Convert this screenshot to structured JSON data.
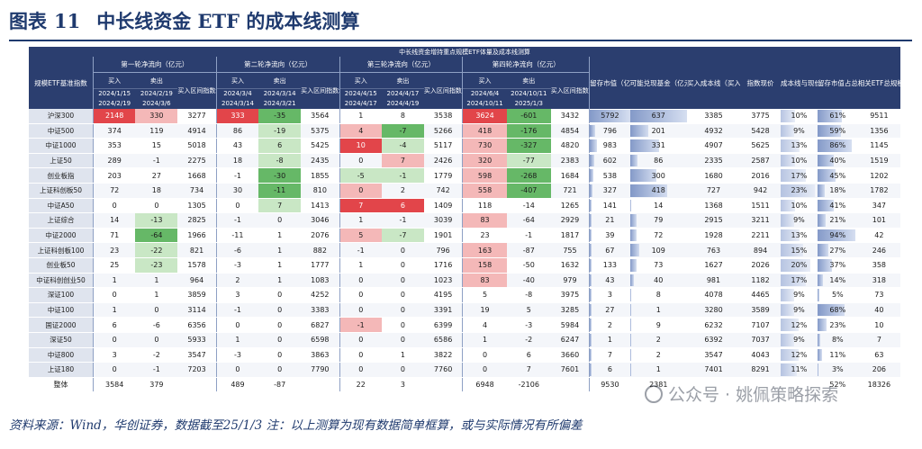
{
  "figure": {
    "label": "图表",
    "number": "11",
    "title": "中长线资金 ETF 的成本线测算"
  },
  "table": {
    "caption": "中长线资金增持重点规模ETF体量及成本线测算",
    "corner": "规模ETF基准指数",
    "rounds": [
      {
        "title": "第一轮净流向（亿元）",
        "buy": "买入",
        "sell": "卖出",
        "range_head": "买入区间指数均价",
        "buy_period": [
          "2024/1/15",
          "2024/2/19"
        ],
        "sell_period": [
          "2024/2/19",
          "2024/3/6"
        ]
      },
      {
        "title": "第二轮净流向（亿元）",
        "buy": "买入",
        "sell": "卖出",
        "range_head": "买入区间指数均价",
        "buy_period": [
          "2024/3/4",
          "2024/3/14"
        ],
        "sell_period": [
          "2024/3/14",
          "2024/3/21"
        ]
      },
      {
        "title": "第三轮净流向（亿元）",
        "buy": "买入",
        "sell": "卖出",
        "range_head": "买入区间指数均价",
        "buy_period": [
          "2024/4/15",
          "2024/4/17"
        ],
        "sell_period": [
          "2024/4/17",
          "2024/4/19"
        ]
      },
      {
        "title": "第四轮净流向（亿元）",
        "buy": "买入",
        "sell": "卖出",
        "range_head": "买入区间指数均价",
        "buy_period": [
          "2024/6/4",
          "2024/10/11"
        ],
        "sell_period": [
          "2024/10/11",
          "2025/1/3"
        ]
      }
    ],
    "extra_heads": [
      "留存市值（亿元）",
      "可能兑现基金（亿元）",
      "买入成本线（买入金额加权）",
      "指数现价",
      "成本线与现价安全垫",
      "留存市值占总规模比例",
      "相关ETF总规模（亿元）"
    ],
    "rows": [
      {
        "name": "沪深300",
        "v": [
          "2148",
          "330",
          "3277",
          "333",
          "-35",
          "3564",
          "1",
          "8",
          "3538",
          "3624",
          "-601",
          "3432",
          "5792",
          "637",
          "3385",
          "3775",
          "10%",
          "61%",
          "9511"
        ]
      },
      {
        "name": "中证500",
        "v": [
          "374",
          "119",
          "4914",
          "86",
          "-19",
          "5375",
          "4",
          "-7",
          "5266",
          "418",
          "-176",
          "4854",
          "796",
          "201",
          "4932",
          "5428",
          "9%",
          "59%",
          "1356"
        ]
      },
      {
        "name": "中证1000",
        "v": [
          "353",
          "15",
          "5018",
          "43",
          "6",
          "5425",
          "10",
          "-4",
          "5117",
          "730",
          "-327",
          "4820",
          "983",
          "331",
          "4907",
          "5625",
          "13%",
          "86%",
          "1145"
        ]
      },
      {
        "name": "上证50",
        "v": [
          "289",
          "-1",
          "2275",
          "18",
          "-8",
          "2435",
          "0",
          "7",
          "2426",
          "320",
          "-77",
          "2383",
          "602",
          "86",
          "2335",
          "2587",
          "10%",
          "40%",
          "1519"
        ]
      },
      {
        "name": "创业板指",
        "v": [
          "203",
          "27",
          "1668",
          "-1",
          "-30",
          "1855",
          "-5",
          "-1",
          "1779",
          "598",
          "-268",
          "1684",
          "538",
          "300",
          "1680",
          "2016",
          "17%",
          "45%",
          "1202"
        ]
      },
      {
        "name": "上证科创板50",
        "v": [
          "72",
          "18",
          "734",
          "30",
          "-11",
          "810",
          "0",
          "2",
          "742",
          "558",
          "-407",
          "721",
          "327",
          "418",
          "727",
          "942",
          "23%",
          "18%",
          "1782"
        ]
      },
      {
        "name": "中证A50",
        "v": [
          "0",
          "0",
          "1305",
          "0",
          "7",
          "1413",
          "7",
          "6",
          "1409",
          "118",
          "-14",
          "1265",
          "141",
          "14",
          "1368",
          "1511",
          "10%",
          "41%",
          "347"
        ]
      },
      {
        "name": "上证综合",
        "v": [
          "14",
          "-13",
          "2825",
          "-1",
          "0",
          "3046",
          "1",
          "-1",
          "3039",
          "83",
          "-64",
          "2929",
          "21",
          "79",
          "2915",
          "3211",
          "9%",
          "21%",
          "101"
        ]
      },
      {
        "name": "中证2000",
        "v": [
          "71",
          "-64",
          "1966",
          "-11",
          "1",
          "2076",
          "5",
          "-7",
          "1901",
          "23",
          "-1",
          "1817",
          "39",
          "72",
          "1928",
          "2211",
          "13%",
          "94%",
          "42"
        ]
      },
      {
        "name": "上证科创板100",
        "v": [
          "23",
          "-22",
          "821",
          "-6",
          "1",
          "882",
          "-1",
          "0",
          "796",
          "163",
          "-87",
          "755",
          "67",
          "109",
          "763",
          "894",
          "15%",
          "27%",
          "246"
        ]
      },
      {
        "name": "创业板50",
        "v": [
          "25",
          "-23",
          "1578",
          "-3",
          "1",
          "1777",
          "1",
          "0",
          "1716",
          "158",
          "-50",
          "1632",
          "133",
          "73",
          "1627",
          "2026",
          "20%",
          "37%",
          "358"
        ]
      },
      {
        "name": "中证科创创业50",
        "v": [
          "1",
          "1",
          "964",
          "2",
          "1",
          "1083",
          "0",
          "0",
          "1023",
          "83",
          "-40",
          "979",
          "43",
          "40",
          "981",
          "1182",
          "17%",
          "14%",
          "318"
        ]
      },
      {
        "name": "深证100",
        "v": [
          "0",
          "1",
          "3859",
          "3",
          "0",
          "4252",
          "0",
          "0",
          "4195",
          "5",
          "-8",
          "3975",
          "3",
          "8",
          "4078",
          "4465",
          "9%",
          "5%",
          "73"
        ]
      },
      {
        "name": "中证100",
        "v": [
          "1",
          "0",
          "3114",
          "-1",
          "0",
          "3383",
          "0",
          "0",
          "3391",
          "19",
          "5",
          "3285",
          "27",
          "1",
          "3280",
          "3589",
          "9%",
          "68%",
          "40"
        ]
      },
      {
        "name": "国证2000",
        "v": [
          "6",
          "-6",
          "6356",
          "0",
          "0",
          "6827",
          "-1",
          "0",
          "6399",
          "4",
          "-3",
          "5984",
          "2",
          "9",
          "6232",
          "7107",
          "12%",
          "23%",
          "10"
        ]
      },
      {
        "name": "深证50",
        "v": [
          "0",
          "0",
          "5933",
          "1",
          "0",
          "6598",
          "0",
          "0",
          "6586",
          "1",
          "-2",
          "6247",
          "1",
          "2",
          "6392",
          "7037",
          "9%",
          "8%",
          "7"
        ]
      },
      {
        "name": "中证800",
        "v": [
          "3",
          "-2",
          "3547",
          "-3",
          "0",
          "3863",
          "0",
          "1",
          "3822",
          "0",
          "6",
          "3660",
          "7",
          "2",
          "3547",
          "4043",
          "12%",
          "11%",
          "63"
        ]
      },
      {
        "name": "上证180",
        "v": [
          "0",
          "-1",
          "7203",
          "0",
          "0",
          "7790",
          "0",
          "0",
          "7760",
          "0",
          "7",
          "7601",
          "6",
          "1",
          "7401",
          "8291",
          "11%",
          "3%",
          "206"
        ]
      }
    ],
    "total": {
      "name": "整体",
      "v": [
        "3584",
        "379",
        "",
        "489",
        "-87",
        "",
        "22",
        "3",
        "",
        "6948",
        "-2106",
        "",
        "9530",
        "2381",
        "",
        "",
        "",
        "52%",
        "18326"
      ]
    }
  },
  "highlight": {
    "strong_red": "#e2454a",
    "light_red": "#f4b8b8",
    "strong_green": "#66b867",
    "light_green": "#c9e7c5",
    "bar_blue": "#5b78b6"
  },
  "cells_strong_red": [
    "0-0",
    "0-3",
    "0-9",
    "2-6",
    "6-6",
    "6-7"
  ],
  "cells_light_red": [
    "0-1",
    "1-6",
    "2-9",
    "3-7",
    "4-9",
    "5-9",
    "8-6",
    "5-6",
    "11-9",
    "10-9",
    "1-9",
    "7-9",
    "9-9",
    "3-9",
    "14-6"
  ],
  "cells_strong_green": [
    "0-4",
    "4-4",
    "0-10",
    "1-10",
    "2-10",
    "4-10",
    "5-10",
    "8-1",
    "1-7",
    "5-4"
  ],
  "cells_light_green": [
    "1-4",
    "3-4",
    "4-6",
    "4-7",
    "6-4",
    "2-4",
    "8-7",
    "9-1",
    "10-1",
    "7-1",
    "3-10",
    "2-7"
  ],
  "bars": {
    "retained": [
      5792,
      796,
      983,
      602,
      538,
      327,
      141,
      21,
      39,
      67,
      133,
      43,
      3,
      27,
      2,
      1,
      7,
      6
    ],
    "possible": [
      637,
      201,
      331,
      86,
      300,
      418,
      14,
      79,
      72,
      109,
      73,
      40,
      8,
      1,
      9,
      2,
      2,
      1
    ],
    "cushion": [
      0.1,
      0.09,
      0.13,
      0.1,
      0.17,
      0.23,
      0.1,
      0.09,
      0.13,
      0.15,
      0.2,
      0.17,
      0.09,
      0.09,
      0.12,
      0.09,
      0.12,
      0.11
    ],
    "ratio": [
      0.61,
      0.59,
      0.86,
      0.4,
      0.45,
      0.18,
      0.41,
      0.21,
      0.94,
      0.27,
      0.37,
      0.14,
      0.05,
      0.68,
      0.23,
      0.08,
      0.11,
      0.03
    ]
  },
  "footnote": "资料来源：Wind，华创证券，数据截至25/1/3   注：以上测算为现有数据简单框算，或与实际情况有所偏差",
  "watermark": "公众号 · 姚佩策略探索"
}
